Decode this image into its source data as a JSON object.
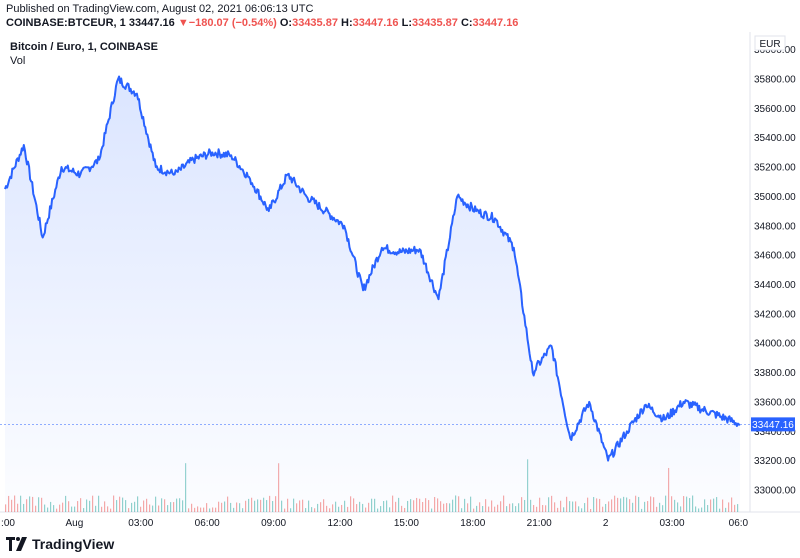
{
  "header": {
    "published": "Published on TradingView.com, August 02, 2021 06:06:13 UTC",
    "symbol": "COINBASE:BTCEUR, 1",
    "last": "33447.16",
    "change_arrow": "▼",
    "change": "−180.07 (−0.54%)",
    "o_label": "O:",
    "o": "33435.87",
    "h_label": "H:",
    "h": "33447.16",
    "l_label": "L:",
    "l": "33435.87",
    "c_label": "C:",
    "c": "33447.16"
  },
  "legend": {
    "title": "Bitcoin / Euro, 1, COINBASE",
    "volume_label": "Vol"
  },
  "currency_label": "EUR",
  "footer": {
    "brand": "TradingView"
  },
  "colors": {
    "line": "#2962ff",
    "fill": "#dbe5ff",
    "price_badge": "#2962ff",
    "vol_up": "#26a69a",
    "vol_down": "#ef5350"
  },
  "chart_data": {
    "type": "area",
    "series": [
      {
        "name": "",
        "x": [
          "31 23:00",
          "00:00",
          "01:00",
          "02:00",
          "02:30",
          "03:00",
          "03:30",
          "04:00",
          "05:00",
          "06:00",
          "07:00",
          "08:00",
          "09:00",
          "10:00",
          "11:00",
          "12:00",
          "13:00",
          "14:00",
          "15:00",
          "16:00",
          "16:30",
          "17:00",
          "18:00",
          "18:30",
          "19:00",
          "20:00",
          "21:00",
          "22:00",
          "22:20",
          "22:40",
          "23:00",
          "23:30",
          "2 00:00",
          "00:30",
          "01:00",
          "02:00",
          "03:00",
          "04:00",
          "05:00",
          "06:00"
        ],
        "values": [
          35050,
          35350,
          34720,
          35200,
          35150,
          35250,
          35800,
          35700,
          35200,
          35150,
          35250,
          35300,
          35280,
          35120,
          34900,
          35150,
          35000,
          34900,
          34800,
          34360,
          34650,
          34620,
          34640,
          34300,
          35000,
          34900,
          34850,
          34650,
          33800,
          33980,
          33350,
          33600,
          33200,
          33400,
          33580,
          33480,
          33600,
          33550,
          33500,
          33447
        ]
      }
    ],
    "last_value": "33447.16",
    "ylim": [
      32850,
      36120
    ],
    "y_ticks": [
      "33000.00",
      "33200.00",
      "33400.00",
      "33600.00",
      "33800.00",
      "34000.00",
      "34200.00",
      "34400.00",
      "34600.00",
      "34800.00",
      "35000.00",
      "35200.00",
      "35400.00",
      "35600.00",
      "35800.00",
      "36000.00"
    ],
    "x_ticks": [
      ":00",
      "Aug",
      "03:00",
      "06:00",
      "09:00",
      "12:00",
      "15:00",
      "18:00",
      "21:00",
      "2",
      "03:00",
      "06:0"
    ],
    "grid": false
  }
}
